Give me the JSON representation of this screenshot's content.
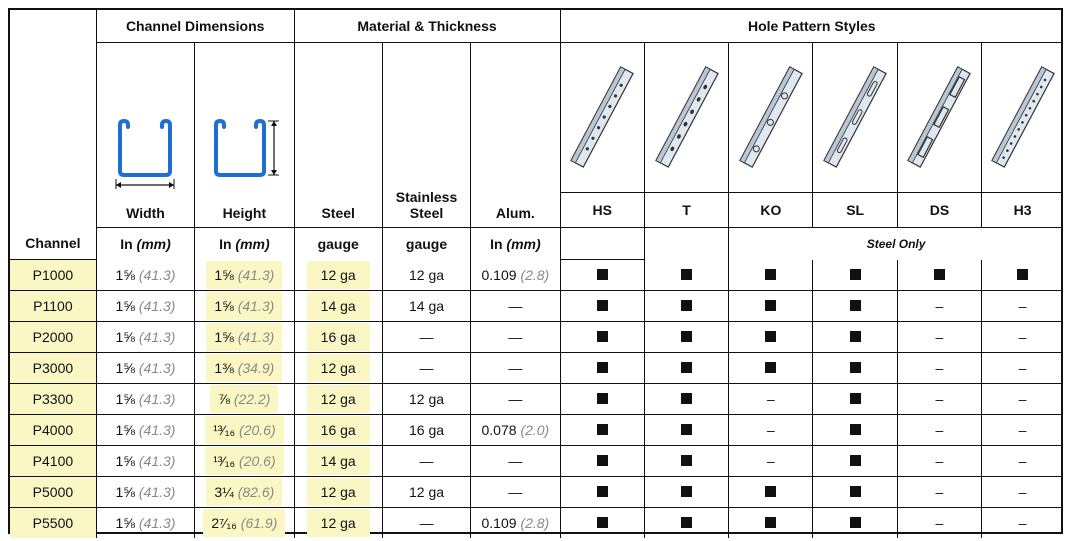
{
  "headers": {
    "channel": "Channel",
    "channel_dimensions": "Channel Dimensions",
    "material_thickness": "Material & Thickness",
    "hole_pattern_styles": "Hole Pattern Styles",
    "width": "Width",
    "height": "Height",
    "steel": "Steel",
    "stainless_steel": "Stainless Steel",
    "alum": "Alum.",
    "unit_in": "In",
    "unit_mm": "(mm)",
    "gauge": "gauge",
    "steel_only": "Steel Only",
    "hole_styles": [
      "HS",
      "T",
      "KO",
      "SL",
      "DS",
      "H3"
    ]
  },
  "rows": [
    {
      "channel": "P1000",
      "width_in": "1⅝",
      "width_mm": "(41.3)",
      "height_in": "1⅝",
      "height_mm": "(41.3)",
      "steel": "12 ga",
      "stainless": "12 ga",
      "alum_in": "0.109",
      "alum_mm": "(2.8)",
      "holes": [
        "■",
        "■",
        "■",
        "■",
        "■",
        "■"
      ]
    },
    {
      "channel": "P1100",
      "width_in": "1⅝",
      "width_mm": "(41.3)",
      "height_in": "1⅝",
      "height_mm": "(41.3)",
      "steel": "14 ga",
      "stainless": "14 ga",
      "alum_in": "—",
      "alum_mm": "",
      "holes": [
        "■",
        "■",
        "■",
        "■",
        "–",
        "–"
      ]
    },
    {
      "channel": "P2000",
      "width_in": "1⅝",
      "width_mm": "(41.3)",
      "height_in": "1⅝",
      "height_mm": "(41.3)",
      "steel": "16 ga",
      "stainless": "—",
      "alum_in": "—",
      "alum_mm": "",
      "holes": [
        "■",
        "■",
        "■",
        "■",
        "–",
        "–"
      ]
    },
    {
      "channel": "P3000",
      "width_in": "1⅝",
      "width_mm": "(41.3)",
      "height_in": "1⅜",
      "height_mm": "(34.9)",
      "steel": "12 ga",
      "stainless": "—",
      "alum_in": "—",
      "alum_mm": "",
      "holes": [
        "■",
        "■",
        "■",
        "■",
        "–",
        "–"
      ]
    },
    {
      "channel": "P3300",
      "width_in": "1⅝",
      "width_mm": "(41.3)",
      "height_in": "⅞",
      "height_mm": "(22.2)",
      "steel": "12 ga",
      "stainless": "12 ga",
      "alum_in": "—",
      "alum_mm": "",
      "holes": [
        "■",
        "■",
        "–",
        "■",
        "–",
        "–"
      ]
    },
    {
      "channel": "P4000",
      "width_in": "1⅝",
      "width_mm": "(41.3)",
      "height_in": "¹³⁄₁₆",
      "height_mm": "(20.6)",
      "steel": "16 ga",
      "stainless": "16 ga",
      "alum_in": "0.078",
      "alum_mm": "(2.0)",
      "holes": [
        "■",
        "■",
        "–",
        "■",
        "–",
        "–"
      ]
    },
    {
      "channel": "P4100",
      "width_in": "1⅝",
      "width_mm": "(41.3)",
      "height_in": "¹³⁄₁₆",
      "height_mm": "(20.6)",
      "steel": "14 ga",
      "stainless": "—",
      "alum_in": "—",
      "alum_mm": "",
      "holes": [
        "■",
        "■",
        "–",
        "■",
        "–",
        "–"
      ]
    },
    {
      "channel": "P5000",
      "width_in": "1⅝",
      "width_mm": "(41.3)",
      "height_in": "3¼",
      "height_mm": "(82.6)",
      "steel": "12 ga",
      "stainless": "12 ga",
      "alum_in": "—",
      "alum_mm": "",
      "holes": [
        "■",
        "■",
        "■",
        "■",
        "–",
        "–"
      ]
    },
    {
      "channel": "P5500",
      "width_in": "1⅝",
      "width_mm": "(41.3)",
      "height_in": "2⁷⁄₁₆",
      "height_mm": "(61.9)",
      "steel": "12 ga",
      "stainless": "—",
      "alum_in": "0.109",
      "alum_mm": "(2.8)",
      "holes": [
        "■",
        "■",
        "■",
        "■",
        "–",
        "–"
      ]
    }
  ],
  "colors": {
    "highlight": "#fbf7c4",
    "channel_blue": "#1e6fd0",
    "metric_gray": "#888888"
  },
  "icons": [
    "channel-width-icon",
    "channel-height-icon",
    "hs-hole-pattern-icon",
    "t-hole-pattern-icon",
    "ko-hole-pattern-icon",
    "sl-hole-pattern-icon",
    "ds-hole-pattern-icon",
    "h3-hole-pattern-icon"
  ]
}
